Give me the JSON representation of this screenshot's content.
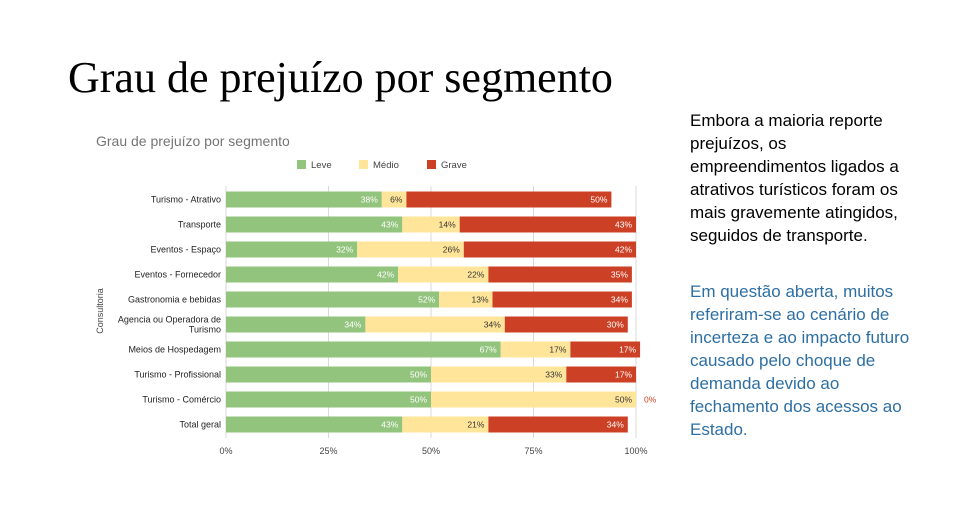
{
  "slide": {
    "title": "Grau de prejuízo por segmento",
    "paragraph1": [
      "Embora a maioria reporte",
      "prejuízos, os",
      "empreendimentos ligados a",
      "atrativos turísticos foram os",
      "mais gravemente atingidos,",
      "seguidos de transporte."
    ],
    "paragraph2": [
      "Em questão aberta, muitos",
      "referiram-se ao cenário de",
      "incerteza e ao impacto futuro",
      "causado pelo choque de",
      "demanda devido ao",
      "fechamento dos acessos ao",
      "Estado."
    ],
    "paragraph2_color": "#2e6fa3"
  },
  "chart_data": {
    "type": "bar",
    "orientation": "horizontal",
    "stacked": "percent",
    "title": "Grau de prejuízo por segmento",
    "ylabel": "Consultoria",
    "xlabel": "",
    "xlim": [
      0,
      100
    ],
    "xticks": [
      "0%",
      "25%",
      "50%",
      "75%",
      "100%"
    ],
    "legend_position": "top",
    "categories": [
      [
        "Turismo - Atrativo"
      ],
      [
        "Transporte"
      ],
      [
        "Eventos - Espaço"
      ],
      [
        "Eventos - Fornecedor"
      ],
      [
        "Gastronomia e bebidas"
      ],
      [
        "Agencia ou Operadora de",
        "Turismo"
      ],
      [
        "Meios de Hospedagem"
      ],
      [
        "Turismo - Profissional"
      ],
      [
        "Turismo - Comércio"
      ],
      [
        "Total geral"
      ]
    ],
    "series": [
      {
        "name": "Leve",
        "color": "#93c47d",
        "label_color": "#ffffff",
        "values": [
          38,
          43,
          32,
          42,
          52,
          34,
          67,
          50,
          50,
          43
        ]
      },
      {
        "name": "Médio",
        "color": "#ffe599",
        "label_color": "#333333",
        "values": [
          6,
          14,
          26,
          22,
          13,
          34,
          17,
          33,
          50,
          21
        ]
      },
      {
        "name": "Grave",
        "color": "#cc4125",
        "label_color": "#ffffff",
        "values": [
          50,
          43,
          42,
          35,
          34,
          30,
          17,
          17,
          0,
          34
        ]
      }
    ]
  }
}
